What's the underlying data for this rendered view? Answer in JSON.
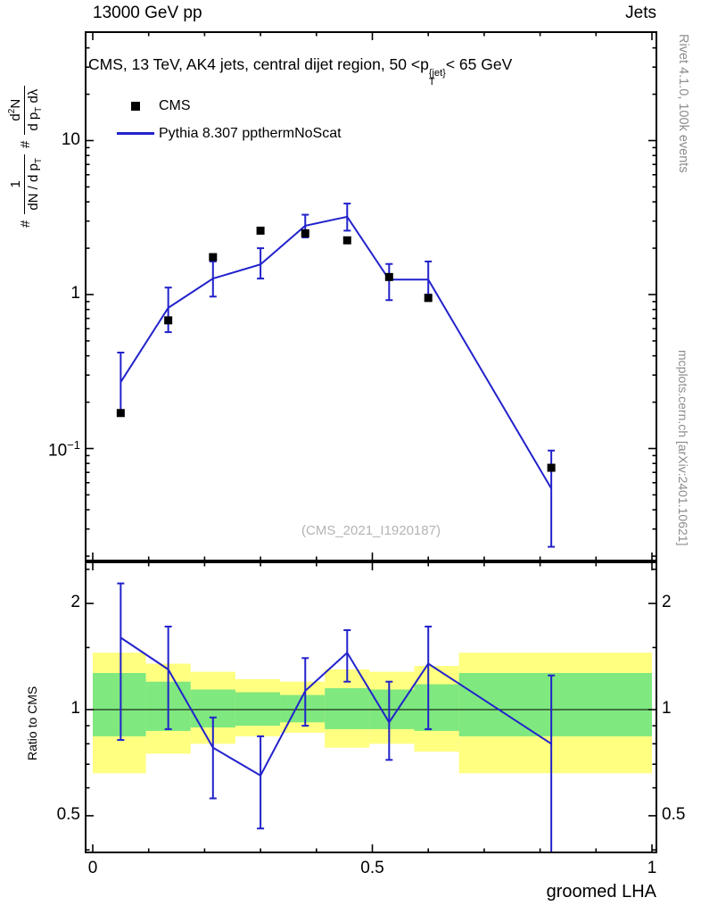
{
  "colors": {
    "line_blue": "#2222cc",
    "marker_black": "#000000",
    "band_yellow": "#ffff80",
    "band_green": "#7fe87f",
    "gray_note": "#8c8c8c",
    "watermark_gray": "#b4b4b4"
  },
  "header": {
    "left": "13000 GeV pp",
    "right": "Jets"
  },
  "panel_title": {
    "prefix": "CMS, 13 TeV, AK4 jets, central dijet region, 50 <p",
    "sup": "{jet}",
    "sub": "T",
    "suffix": "< 65 GeV"
  },
  "ylabel": {
    "hash1": "#",
    "num1": "1",
    "den1": "dN / d p",
    "den1sub": "T",
    "hash2": "#",
    "num2": "d",
    "num2sup": "2",
    "num2b": "N",
    "den2": "d p",
    "den2sub": "T",
    "den2c": " dλ"
  },
  "legend": [
    {
      "label": "CMS",
      "marker": "filled-square",
      "color": "#000000"
    },
    {
      "label": "Pythia 8.307 ppthermNoScat",
      "marker": "line",
      "color": "#2222cc"
    }
  ],
  "watermark": "(CMS_2021_I1920187)",
  "side_notes": {
    "top_right": "Rivet 4.1.0, 100k events",
    "bottom_right": "mcplots.cern.ch [arXiv:2401.10621]"
  },
  "ratio_ylabel": "Ratio to CMS",
  "xlabel": "groomed LHA",
  "chart_data": {
    "type": "line",
    "title": "CMS, 13 TeV, AK4 jets, central dijet region, 50 < pT{jet} < 65 GeV",
    "xlabel": "groomed LHA",
    "x": [
      0.05,
      0.135,
      0.215,
      0.3,
      0.38,
      0.455,
      0.53,
      0.6,
      0.82
    ],
    "series": [
      {
        "name": "CMS",
        "type": "scatter",
        "marker": "filled-square",
        "color": "#000000",
        "values": [
          0.17,
          0.68,
          1.75,
          2.6,
          2.5,
          2.25,
          1.3,
          0.95,
          0.075
        ]
      },
      {
        "name": "Pythia 8.307 ppthermNoScat",
        "type": "line",
        "color": "#2222cc",
        "values": [
          0.27,
          0.82,
          1.27,
          1.57,
          2.8,
          3.2,
          1.25,
          1.25,
          0.055
        ],
        "err_lo": [
          0.165,
          0.57,
          0.97,
          1.27,
          2.35,
          2.6,
          0.92,
          1.0,
          0.023
        ],
        "err_hi": [
          0.42,
          1.11,
          1.64,
          2.0,
          3.3,
          3.9,
          1.58,
          1.64,
          0.097
        ]
      }
    ],
    "main_axis": {
      "scale": "log",
      "range": [
        0.019,
        50
      ],
      "ticks": [
        {
          "v": 0.1,
          "base": "10",
          "exp": "−1"
        },
        {
          "v": 1,
          "base": "1",
          "exp": ""
        },
        {
          "v": 10,
          "base": "10",
          "exp": ""
        }
      ]
    },
    "x_axis": {
      "range": [
        0,
        1
      ],
      "minor_step": 0.1,
      "ticks": [
        {
          "v": 0,
          "label": "0"
        },
        {
          "v": 0.5,
          "label": "0.5"
        },
        {
          "v": 1,
          "label": "1"
        }
      ]
    },
    "ratio": {
      "label": "Ratio to CMS",
      "scale": "log",
      "range": [
        0.394,
        2.62
      ],
      "ticks": [
        {
          "v": 0.5,
          "label": "0.5"
        },
        {
          "v": 1,
          "label": "1"
        },
        {
          "v": 2,
          "label": "2"
        }
      ],
      "minor_ticks": [
        0.4,
        0.6,
        0.7,
        0.8,
        0.9,
        1.5,
        2.5
      ],
      "values": [
        1.6,
        1.3,
        0.78,
        0.65,
        1.13,
        1.45,
        0.92,
        1.35,
        0.8
      ],
      "err_lo": [
        0.82,
        0.88,
        0.56,
        0.46,
        0.9,
        1.2,
        0.72,
        0.88,
        0.37
      ],
      "err_hi": [
        2.28,
        1.72,
        0.95,
        0.84,
        1.4,
        1.68,
        1.2,
        1.72,
        1.25
      ],
      "bands": {
        "edges": [
          0,
          0.095,
          0.175,
          0.255,
          0.335,
          0.415,
          0.495,
          0.575,
          0.655,
          1.0
        ],
        "yellow": [
          [
            0.66,
            1.45
          ],
          [
            0.75,
            1.35
          ],
          [
            0.8,
            1.28
          ],
          [
            0.84,
            1.22
          ],
          [
            0.86,
            1.2
          ],
          [
            0.78,
            1.3
          ],
          [
            0.8,
            1.28
          ],
          [
            0.76,
            1.33
          ],
          [
            0.66,
            1.45
          ]
        ],
        "green": [
          [
            0.84,
            1.27
          ],
          [
            0.87,
            1.2
          ],
          [
            0.89,
            1.14
          ],
          [
            0.9,
            1.12
          ],
          [
            0.92,
            1.1
          ],
          [
            0.88,
            1.15
          ],
          [
            0.88,
            1.14
          ],
          [
            0.87,
            1.18
          ],
          [
            0.84,
            1.27
          ]
        ]
      }
    }
  }
}
